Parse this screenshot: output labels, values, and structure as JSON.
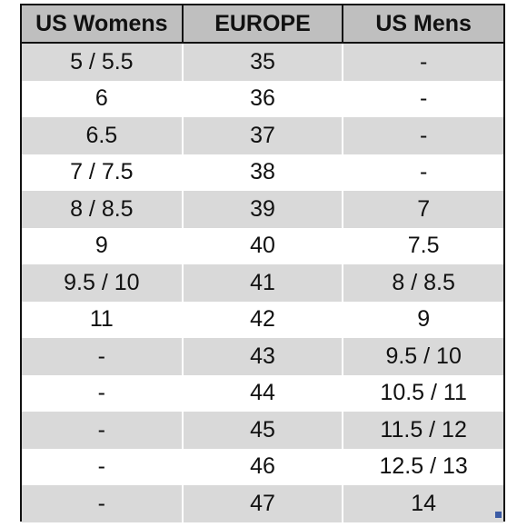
{
  "table": {
    "header": [
      "US Womens",
      "EUROPE",
      "US Mens"
    ],
    "rows": [
      [
        "5 / 5.5",
        "35",
        "-"
      ],
      [
        "6",
        "36",
        "-"
      ],
      [
        "6.5",
        "37",
        "-"
      ],
      [
        "7 / 7.5",
        "38",
        "-"
      ],
      [
        "8 / 8.5",
        "39",
        "7"
      ],
      [
        "9",
        "40",
        "7.5"
      ],
      [
        "9.5 / 10",
        "41",
        "8 / 8.5"
      ],
      [
        "11",
        "42",
        "9"
      ],
      [
        "-",
        "43",
        "9.5 / 10"
      ],
      [
        "-",
        "44",
        "10.5 / 11"
      ],
      [
        "-",
        "45",
        "11.5 / 12"
      ],
      [
        "-",
        "46",
        "12.5 / 13"
      ],
      [
        "-",
        "47",
        "14"
      ]
    ]
  }
}
